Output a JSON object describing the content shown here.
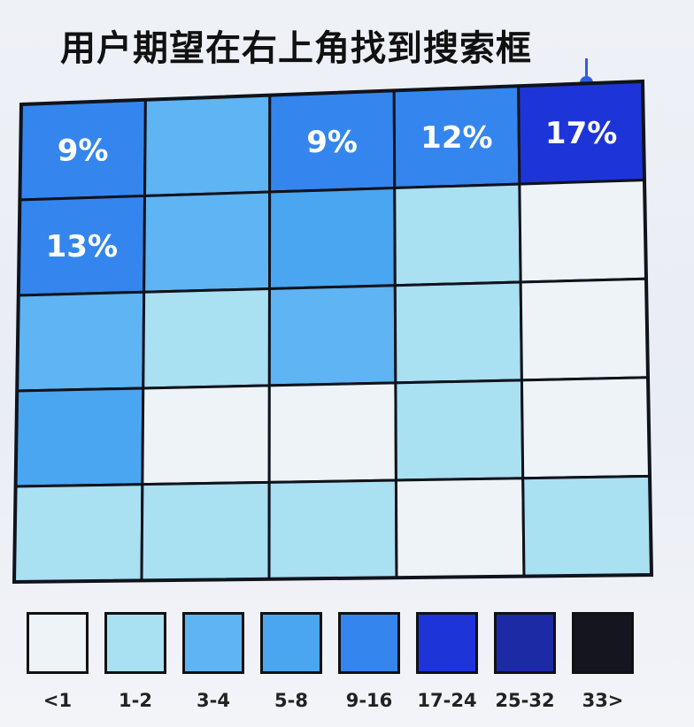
{
  "title": "用户期望在右上角找到搜索框",
  "chart_data": {
    "type": "heatmap",
    "rows": 5,
    "cols": 5,
    "bins": [
      "<1",
      "1-2",
      "3-4",
      "5-8",
      "9-16",
      "17-24",
      "25-32",
      "33>"
    ],
    "colors": [
      "#eef3f7",
      "#a9e0f2",
      "#5fb4f3",
      "#4aa6f0",
      "#3486ee",
      "#1d35d8",
      "#1c2aa6",
      "#15151f"
    ],
    "cells": [
      [
        {
          "bin": 4,
          "label": "9%"
        },
        {
          "bin": 2,
          "label": ""
        },
        {
          "bin": 4,
          "label": "9%"
        },
        {
          "bin": 4,
          "label": "12%"
        },
        {
          "bin": 5,
          "label": "17%"
        }
      ],
      [
        {
          "bin": 4,
          "label": "13%"
        },
        {
          "bin": 2,
          "label": ""
        },
        {
          "bin": 3,
          "label": ""
        },
        {
          "bin": 1,
          "label": ""
        },
        {
          "bin": 0,
          "label": ""
        }
      ],
      [
        {
          "bin": 2,
          "label": ""
        },
        {
          "bin": 1,
          "label": ""
        },
        {
          "bin": 2,
          "label": ""
        },
        {
          "bin": 1,
          "label": ""
        },
        {
          "bin": 0,
          "label": ""
        }
      ],
      [
        {
          "bin": 3,
          "label": ""
        },
        {
          "bin": 0,
          "label": ""
        },
        {
          "bin": 0,
          "label": ""
        },
        {
          "bin": 1,
          "label": ""
        },
        {
          "bin": 0,
          "label": ""
        }
      ],
      [
        {
          "bin": 1,
          "label": ""
        },
        {
          "bin": 1,
          "label": ""
        },
        {
          "bin": 1,
          "label": ""
        },
        {
          "bin": 0,
          "label": ""
        },
        {
          "bin": 1,
          "label": ""
        }
      ]
    ]
  }
}
